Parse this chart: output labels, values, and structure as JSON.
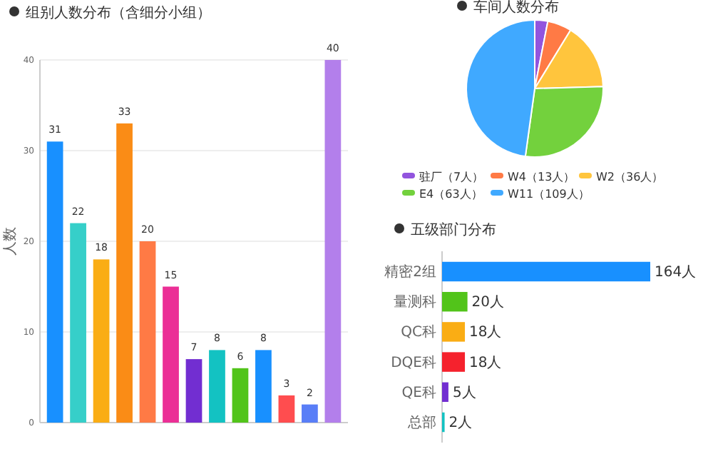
{
  "chart_data": [
    {
      "type": "bar",
      "title": "组别人数分布（含细分小组）",
      "ylabel": "人数",
      "categories": [
        null,
        null,
        null,
        null,
        null,
        null,
        null,
        null,
        null,
        null,
        null,
        null,
        null
      ],
      "values": [
        31,
        22,
        18,
        33,
        20,
        15,
        7,
        8,
        6,
        8,
        3,
        2,
        40
      ],
      "colors": [
        "#1890ff",
        "#36cfc9",
        "#faad14",
        "#fa8c16",
        "#ff7a45",
        "#eb2f96",
        "#722ed1",
        "#13c2c2",
        "#52c41a",
        "#1890ff",
        "#ff4d4f",
        "#597ef7",
        "#b37feb"
      ],
      "ylim": [
        0,
        40
      ],
      "yticks": [
        0,
        10,
        20,
        30,
        40
      ],
      "grid": "y",
      "data_labels": true
    },
    {
      "type": "pie",
      "title": "车间人数分布",
      "categories": [
        "驻厂（7人）",
        "W4（13人）",
        "W2（36人）",
        "E4（63人）",
        "W11（109人）"
      ],
      "values": [
        7,
        13,
        36,
        63,
        109
      ],
      "colors": [
        "#9254de",
        "#ff7a45",
        "#ffc53d",
        "#73d13d",
        "#40a9ff"
      ],
      "legend": "bottom"
    },
    {
      "type": "bar",
      "orientation": "horizontal",
      "title": "五级部门分布",
      "categories": [
        "精密2组",
        "量测科",
        "QC科",
        "DQE科",
        "QE科",
        "总部"
      ],
      "values": [
        164,
        20,
        18,
        18,
        5,
        2
      ],
      "colors": [
        "#1890ff",
        "#52c41a",
        "#faad14",
        "#f5222d",
        "#722ed1",
        "#13c2c2"
      ],
      "value_labels": [
        "164人",
        "20人",
        "18人",
        "18人",
        "5人",
        "2人"
      ],
      "grid": false
    }
  ]
}
